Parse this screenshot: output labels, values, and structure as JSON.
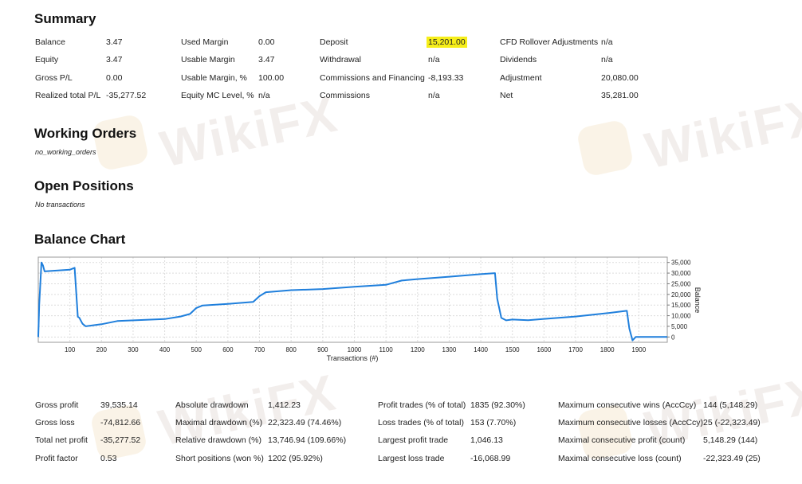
{
  "sections": {
    "summary_title": "Summary",
    "working_orders_title": "Working Orders",
    "working_orders_note": "no_working_orders",
    "open_positions_title": "Open Positions",
    "open_positions_note": "No transactions",
    "balance_chart_title": "Balance Chart"
  },
  "watermark": {
    "text": "WikiFX"
  },
  "summary": {
    "col1": [
      {
        "label": "Balance",
        "value": "3.47"
      },
      {
        "label": "Equity",
        "value": "3.47"
      },
      {
        "label": "Gross P/L",
        "value": "0.00"
      },
      {
        "label": "Realized total P/L",
        "value": "-35,277.52"
      }
    ],
    "col2": [
      {
        "label": "Used Margin",
        "value": "0.00"
      },
      {
        "label": "Usable Margin",
        "value": "3.47"
      },
      {
        "label": "Usable Margin, %",
        "value": "100.00"
      },
      {
        "label": "Equity MC Level, %",
        "value": "n/a"
      }
    ],
    "col3": [
      {
        "label": "Deposit",
        "value": "15,201.00"
      },
      {
        "label": "Withdrawal",
        "value": "n/a"
      },
      {
        "label": "Commissions and Financing",
        "value": "-8,193.33"
      },
      {
        "label": "Commissions",
        "value": "n/a"
      }
    ],
    "col4": [
      {
        "label": "CFD Rollover Adjustments",
        "value": "n/a"
      },
      {
        "label": "Dividends",
        "value": "n/a"
      },
      {
        "label": "Adjustment",
        "value": "20,080.00"
      },
      {
        "label": "Net",
        "value": "35,281.00"
      }
    ],
    "highlight_color": "#f6ee1a"
  },
  "stats": {
    "col1": [
      {
        "label": "Gross profit",
        "value": "39,535.14"
      },
      {
        "label": "Gross loss",
        "value": "-74,812.66"
      },
      {
        "label": "Total net profit",
        "value": "-35,277.52"
      },
      {
        "label": "Profit factor",
        "value": "0.53"
      }
    ],
    "col2": [
      {
        "label": "Absolute drawdown",
        "value": "1,412.23"
      },
      {
        "label": "Maximal drawdown (%)",
        "value": "22,323.49 (74.46%)"
      },
      {
        "label": "Relative drawdown (%)",
        "value": "13,746.94 (109.66%)"
      },
      {
        "label": "Short positions (won %)",
        "value": "1202 (95.92%)"
      }
    ],
    "col3": [
      {
        "label": "Profit trades (% of total)",
        "value": "1835 (92.30%)"
      },
      {
        "label": "Loss trades (% of total)",
        "value": "153 (7.70%)"
      },
      {
        "label": "Largest profit trade",
        "value": "1,046.13"
      },
      {
        "label": "Largest loss trade",
        "value": "-16,068.99"
      }
    ],
    "col4": [
      {
        "label": "Maximum consecutive wins (AccCcy)",
        "value": "144 (5,148.29)"
      },
      {
        "label": "Maximum consecutive losses (AccCcy)",
        "value": "25 (-22,323.49)"
      },
      {
        "label": "Maximal consecutive profit (count)",
        "value": "5,148.29 (144)"
      },
      {
        "label": "Maximal consecutive loss (count)",
        "value": "-22,323.49 (25)"
      }
    ]
  },
  "chart_data": {
    "type": "line",
    "title": "",
    "xlabel": "Transactions (#)",
    "ylabel": "Balance",
    "xlim": [
      0,
      1990
    ],
    "ylim": [
      -2500,
      37500
    ],
    "x_ticks": [
      100,
      200,
      300,
      400,
      500,
      600,
      700,
      800,
      900,
      1000,
      1100,
      1200,
      1300,
      1400,
      1500,
      1600,
      1700,
      1800,
      1900
    ],
    "x_tick_labels": [
      "100",
      "200",
      "300",
      "400",
      "500",
      "600",
      "700",
      "800",
      "900",
      "1000",
      "1100",
      "1200",
      "1300",
      "1400",
      "1500",
      "1600",
      "1700",
      "1800",
      "1900"
    ],
    "y_ticks": [
      0,
      5000,
      10000,
      15000,
      20000,
      25000,
      30000,
      35000
    ],
    "y_tick_labels": [
      "0",
      "5,000",
      "10,000",
      "15,000",
      "20,000",
      "25,000",
      "30,000",
      "35,000"
    ],
    "y_axis_side": "right",
    "grid": true,
    "line_color": "#1f7fdc",
    "series": [
      {
        "x": [
          0,
          3,
          10,
          15,
          20,
          100,
          115,
          125,
          130,
          140,
          150,
          200,
          250,
          400,
          450,
          480,
          500,
          520,
          600,
          680,
          700,
          720,
          800,
          900,
          1000,
          1100,
          1150,
          1200,
          1300,
          1400,
          1445,
          1452,
          1465,
          1480,
          1500,
          1550,
          1600,
          1700,
          1800,
          1862,
          1870,
          1880,
          1890,
          1990
        ],
        "y": [
          0,
          15201,
          35000,
          33600,
          30800,
          31600,
          32500,
          9500,
          9000,
          6200,
          5000,
          6000,
          7500,
          8400,
          9600,
          10800,
          13600,
          14800,
          15500,
          16500,
          19200,
          21000,
          22000,
          22500,
          23600,
          24500,
          26500,
          27200,
          28300,
          29500,
          30000,
          18000,
          9000,
          7800,
          8200,
          7900,
          8500,
          9600,
          11200,
          12300,
          4000,
          -1600,
          0,
          0
        ]
      }
    ]
  }
}
